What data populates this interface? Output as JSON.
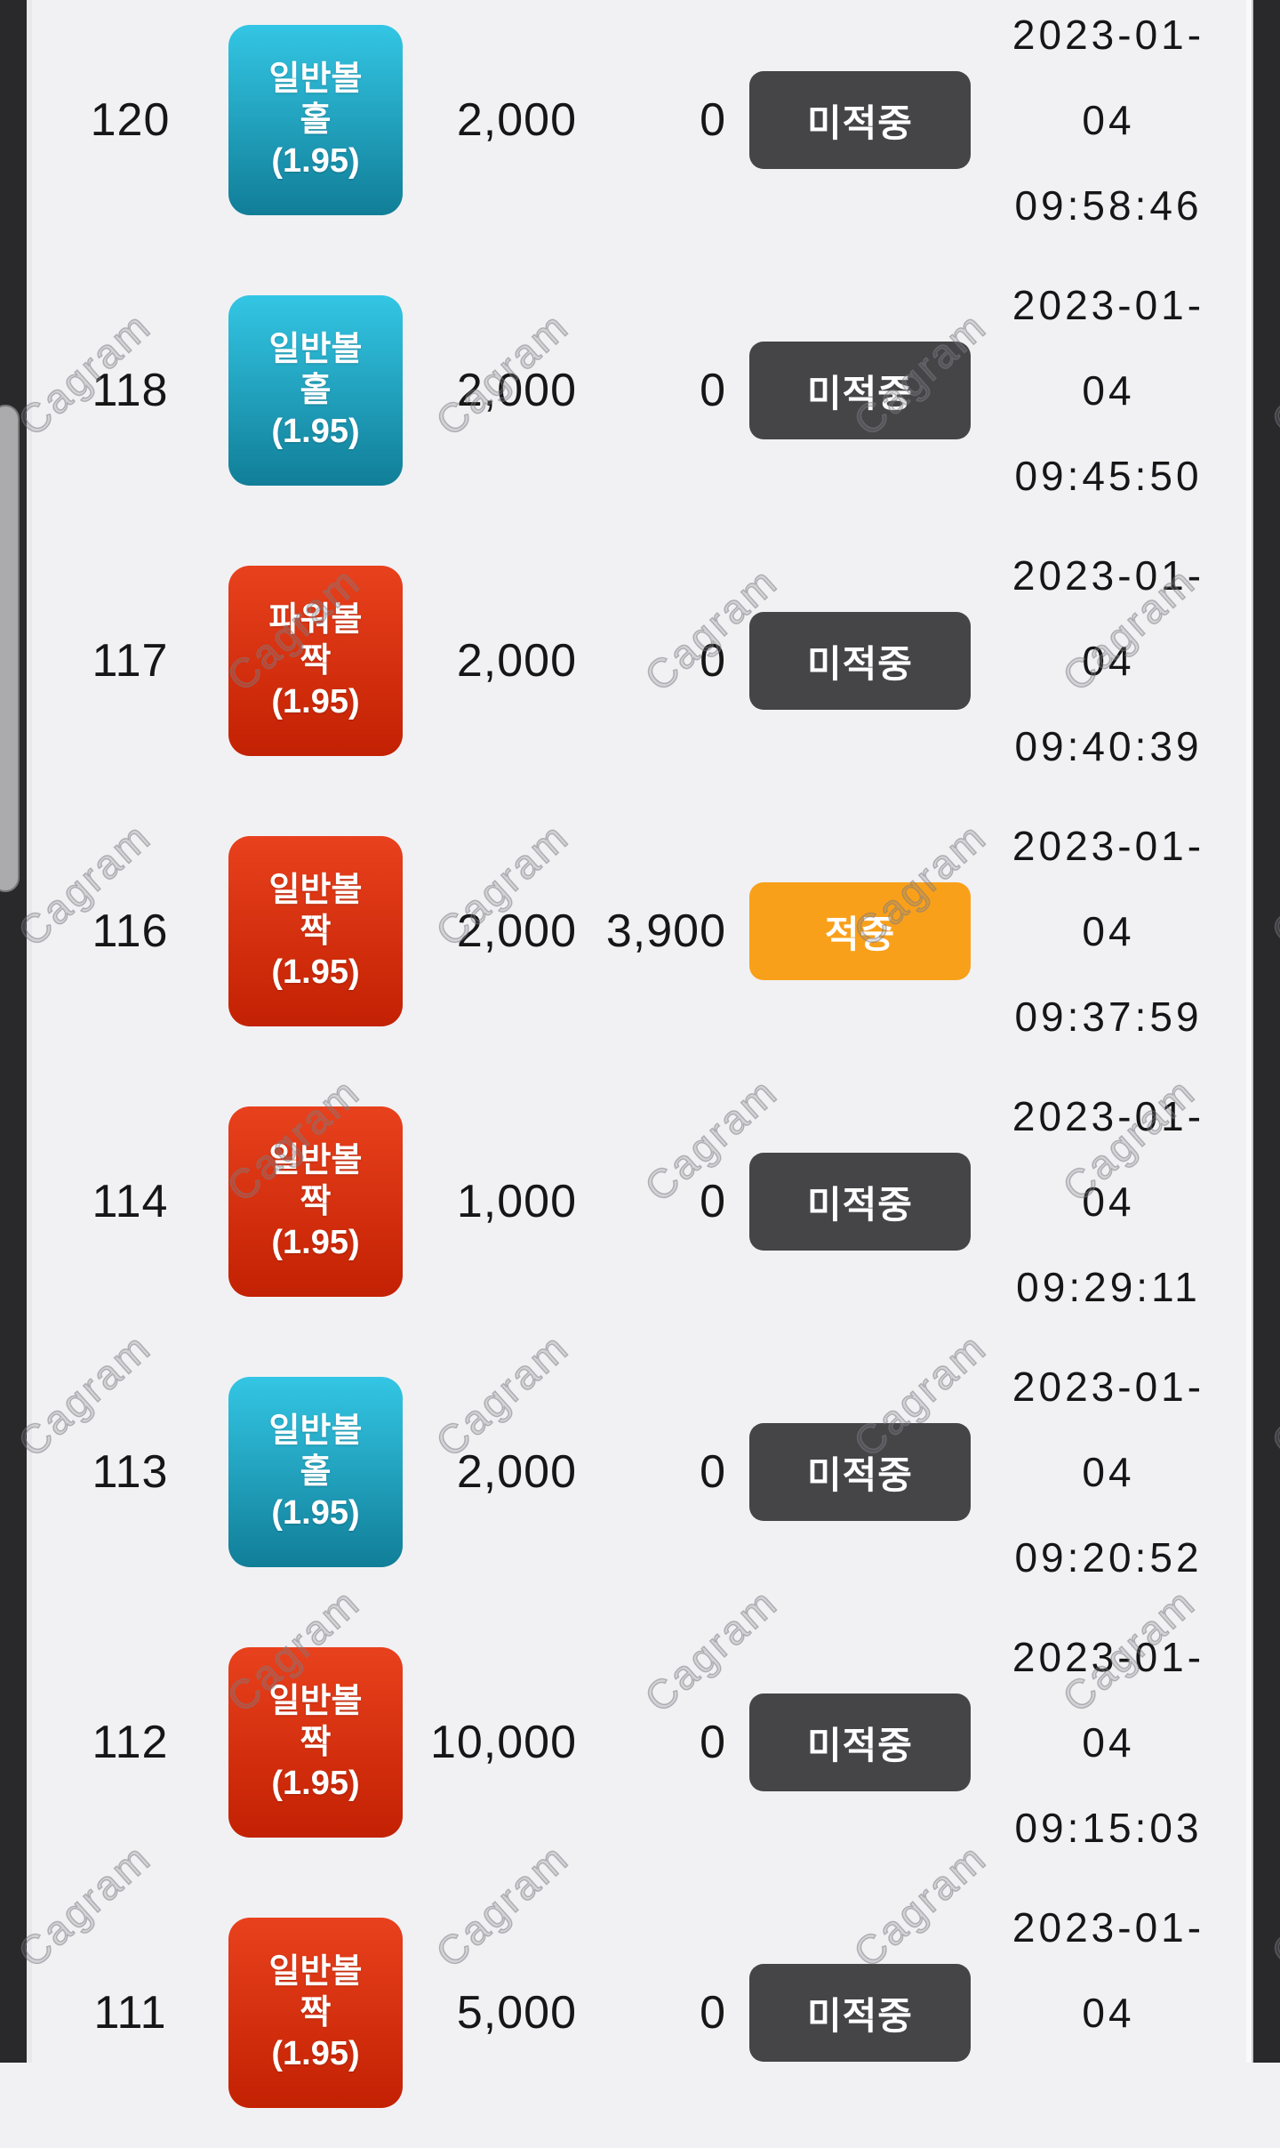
{
  "watermark": {
    "text": "Cagram"
  },
  "colors": {
    "page_bg": "#f1f1f4",
    "edge_strip": "#29292b",
    "scroll_thumb": "#ababad",
    "pick_blue_top": "#33c6e4",
    "pick_blue_bottom": "#117e98",
    "pick_red_top": "#e8411d",
    "pick_red_bottom": "#c32103",
    "status_miss_bg": "#454548",
    "status_hit_bg": "#f9a01b",
    "text": "#161616"
  },
  "table": {
    "rows": [
      {
        "no": "120",
        "pick": {
          "game": "일반볼",
          "side": "홀",
          "odds": "(1.95)",
          "variant": "blue"
        },
        "bet": "2,000",
        "win": "0",
        "status": {
          "label": "미적중",
          "variant": "miss"
        },
        "placed_at": "2023-01-04 09:58:46"
      },
      {
        "no": "118",
        "pick": {
          "game": "일반볼",
          "side": "홀",
          "odds": "(1.95)",
          "variant": "blue"
        },
        "bet": "2,000",
        "win": "0",
        "status": {
          "label": "미적중",
          "variant": "miss"
        },
        "placed_at": "2023-01-04 09:45:50"
      },
      {
        "no": "117",
        "pick": {
          "game": "파워볼",
          "side": "짝",
          "odds": "(1.95)",
          "variant": "red"
        },
        "bet": "2,000",
        "win": "0",
        "status": {
          "label": "미적중",
          "variant": "miss"
        },
        "placed_at": "2023-01-04 09:40:39"
      },
      {
        "no": "116",
        "pick": {
          "game": "일반볼",
          "side": "짝",
          "odds": "(1.95)",
          "variant": "red"
        },
        "bet": "2,000",
        "win": "3,900",
        "status": {
          "label": "적중",
          "variant": "hit"
        },
        "placed_at": "2023-01-04 09:37:59"
      },
      {
        "no": "114",
        "pick": {
          "game": "일반볼",
          "side": "짝",
          "odds": "(1.95)",
          "variant": "red"
        },
        "bet": "1,000",
        "win": "0",
        "status": {
          "label": "미적중",
          "variant": "miss"
        },
        "placed_at": "2023-01-04 09:29:11"
      },
      {
        "no": "113",
        "pick": {
          "game": "일반볼",
          "side": "홀",
          "odds": "(1.95)",
          "variant": "blue"
        },
        "bet": "2,000",
        "win": "0",
        "status": {
          "label": "미적중",
          "variant": "miss"
        },
        "placed_at": "2023-01-04 09:20:52"
      },
      {
        "no": "112",
        "pick": {
          "game": "일반볼",
          "side": "짝",
          "odds": "(1.95)",
          "variant": "red"
        },
        "bet": "10,000",
        "win": "0",
        "status": {
          "label": "미적중",
          "variant": "miss"
        },
        "placed_at": "2023-01-04 09:15:03"
      },
      {
        "no": "111",
        "pick": {
          "game": "일반볼",
          "side": "짝",
          "odds": "(1.95)",
          "variant": "red"
        },
        "bet": "5,000",
        "win": "0",
        "status": {
          "label": "미적중",
          "variant": "miss"
        },
        "placed_at": "2023-01-04"
      }
    ]
  }
}
